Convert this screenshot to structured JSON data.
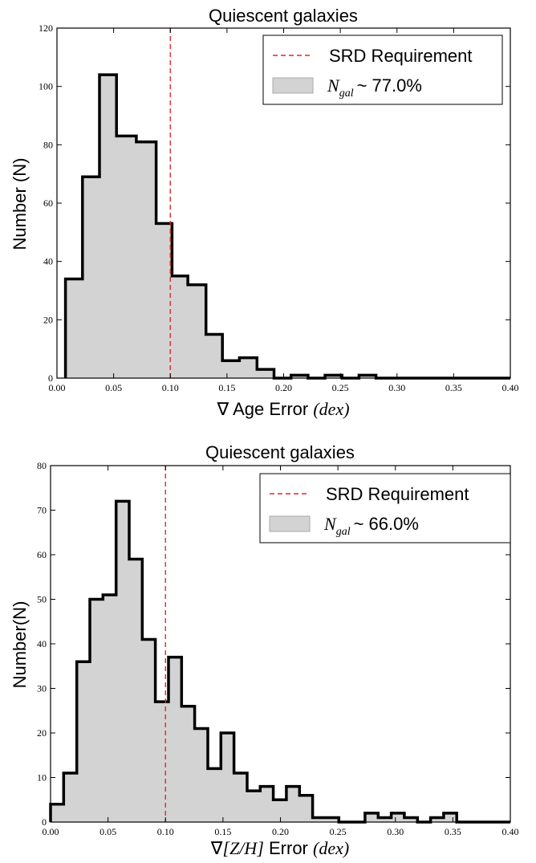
{
  "chart_data": [
    {
      "type": "histogram",
      "title": "Quiescent galaxies",
      "ylabel": "Number (N)",
      "xlabel_prefix": "∇ Age Error ",
      "xlabel_italic": "(dex)",
      "xlim": [
        0.0,
        0.4
      ],
      "ylim": [
        0,
        120
      ],
      "xticks": [
        "0.00",
        "0.05",
        "0.10",
        "0.15",
        "0.20",
        "0.25",
        "0.30",
        "0.35",
        "0.40"
      ],
      "yticks": [
        "0",
        "20",
        "40",
        "60",
        "80",
        "100",
        "120"
      ],
      "bin_edges": [
        0.0075,
        0.0225,
        0.0375,
        0.0525,
        0.07,
        0.0875,
        0.1015,
        0.1155,
        0.1315,
        0.146,
        0.161,
        0.1765,
        0.1915,
        0.2065,
        0.2215,
        0.2365,
        0.2515,
        0.2665,
        0.2815,
        0.297
      ],
      "counts": [
        34,
        69,
        104,
        83,
        81,
        53,
        35,
        32,
        15,
        6,
        7,
        3,
        0,
        1,
        0,
        1,
        0,
        1,
        0
      ],
      "tail_to": 0.4,
      "srd_requirement": 0.1,
      "legend": {
        "position": "upper-right",
        "line_label": "SRD Requirement",
        "patch_label_var": "N",
        "patch_label_sub": "gal",
        "patch_label_value": "~ 77.0%"
      },
      "colors": {
        "fill": "#d3d3d3",
        "edge": "#000000",
        "srd": "#e8252a"
      }
    },
    {
      "type": "histogram",
      "title": "Quiescent galaxies",
      "ylabel": "Number(N)",
      "xlabel_prefix": "∇",
      "xlabel_italic": "[Z/H]",
      "xlabel_mid": " Error ",
      "xlabel_italic2": "(dex)",
      "xlim": [
        0.0,
        0.4
      ],
      "ylim": [
        0,
        80
      ],
      "xticks": [
        "0.00",
        "0.05",
        "0.10",
        "0.15",
        "0.20",
        "0.25",
        "0.30",
        "0.35",
        "0.40"
      ],
      "yticks": [
        "0",
        "10",
        "20",
        "30",
        "40",
        "50",
        "60",
        "70",
        "80"
      ],
      "bin_edges": [
        0.0,
        0.0114,
        0.0228,
        0.0342,
        0.0456,
        0.057,
        0.0684,
        0.0798,
        0.0912,
        0.1026,
        0.114,
        0.1254,
        0.1368,
        0.1482,
        0.1596,
        0.171,
        0.1824,
        0.1938,
        0.2052,
        0.2166,
        0.228,
        0.2394,
        0.2508,
        0.2622,
        0.2736,
        0.285,
        0.2964,
        0.3078,
        0.3192,
        0.3306,
        0.342,
        0.3534
      ],
      "counts": [
        4,
        11,
        36,
        50,
        51,
        72,
        59,
        41,
        27,
        37,
        26,
        21,
        12,
        20,
        11,
        7,
        8,
        5,
        8,
        6,
        1,
        1,
        0,
        0,
        2,
        1,
        2,
        1,
        0,
        1,
        2
      ],
      "tail_to": 0.4,
      "srd_requirement": 0.1,
      "legend": {
        "position": "upper-right",
        "line_label": "SRD Requirement",
        "patch_label_var": "N",
        "patch_label_sub": "gal",
        "patch_label_value": "~ 66.0%"
      },
      "colors": {
        "fill": "#d3d3d3",
        "edge": "#000000",
        "srd": "#e8252a"
      }
    }
  ]
}
